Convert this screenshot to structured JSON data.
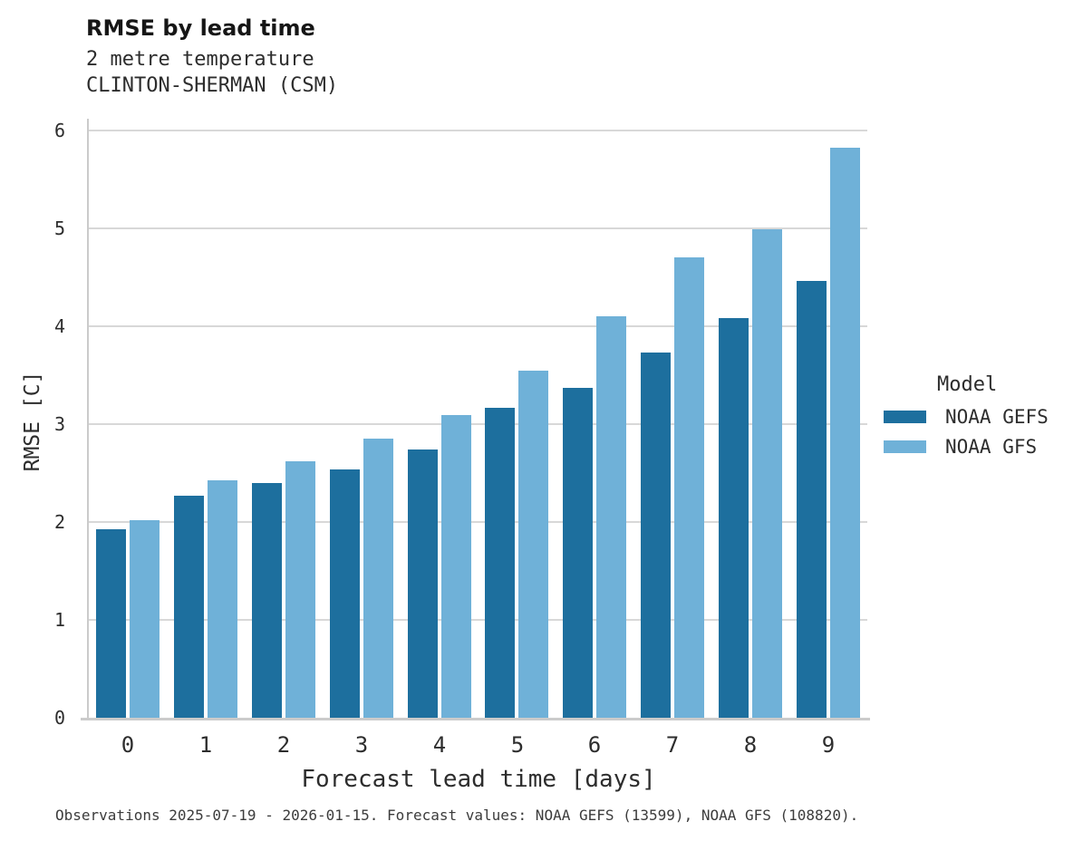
{
  "title": "RMSE by lead time",
  "subtitle_line1": "2 metre temperature",
  "subtitle_line2": "CLINTON-SHERMAN (CSM)",
  "caption": "Observations 2025-07-19 - 2026-01-15. Forecast values: NOAA GEFS (13599), NOAA GFS (108820).",
  "legend": {
    "title": "Model",
    "entries": [
      {
        "label": "NOAA GEFS",
        "color": "#1d6f9e"
      },
      {
        "label": "NOAA GFS",
        "color": "#6fb1d8"
      }
    ]
  },
  "colors": {
    "gefs_bar": "#1d6f9e",
    "gfs_bar": "#6fb1d8",
    "gridline": "#d8d8d8",
    "spine": "#cbcbcb",
    "text": "#2d2d2d"
  },
  "chart_data": {
    "type": "bar",
    "title": "RMSE by lead time",
    "subtitle": [
      "2 metre temperature",
      "CLINTON-SHERMAN (CSM)"
    ],
    "categories": [
      "0",
      "1",
      "2",
      "3",
      "4",
      "5",
      "6",
      "7",
      "8",
      "9"
    ],
    "series": [
      {
        "name": "NOAA GEFS",
        "color": "#1d6f9e",
        "values": [
          1.93,
          2.27,
          2.4,
          2.54,
          2.74,
          3.17,
          3.37,
          3.73,
          4.08,
          4.46
        ]
      },
      {
        "name": "NOAA GFS",
        "color": "#6fb1d8",
        "values": [
          2.02,
          2.43,
          2.62,
          2.85,
          3.09,
          3.55,
          4.1,
          4.7,
          4.99,
          5.82
        ]
      }
    ],
    "xlabel": "Forecast lead time [days]",
    "ylabel": "RMSE [C]",
    "ylim": [
      0,
      6
    ],
    "yticks": [
      0,
      1,
      2,
      3,
      4,
      5,
      6
    ],
    "grid": true,
    "legend_title": "Model",
    "legend_position": "right"
  }
}
